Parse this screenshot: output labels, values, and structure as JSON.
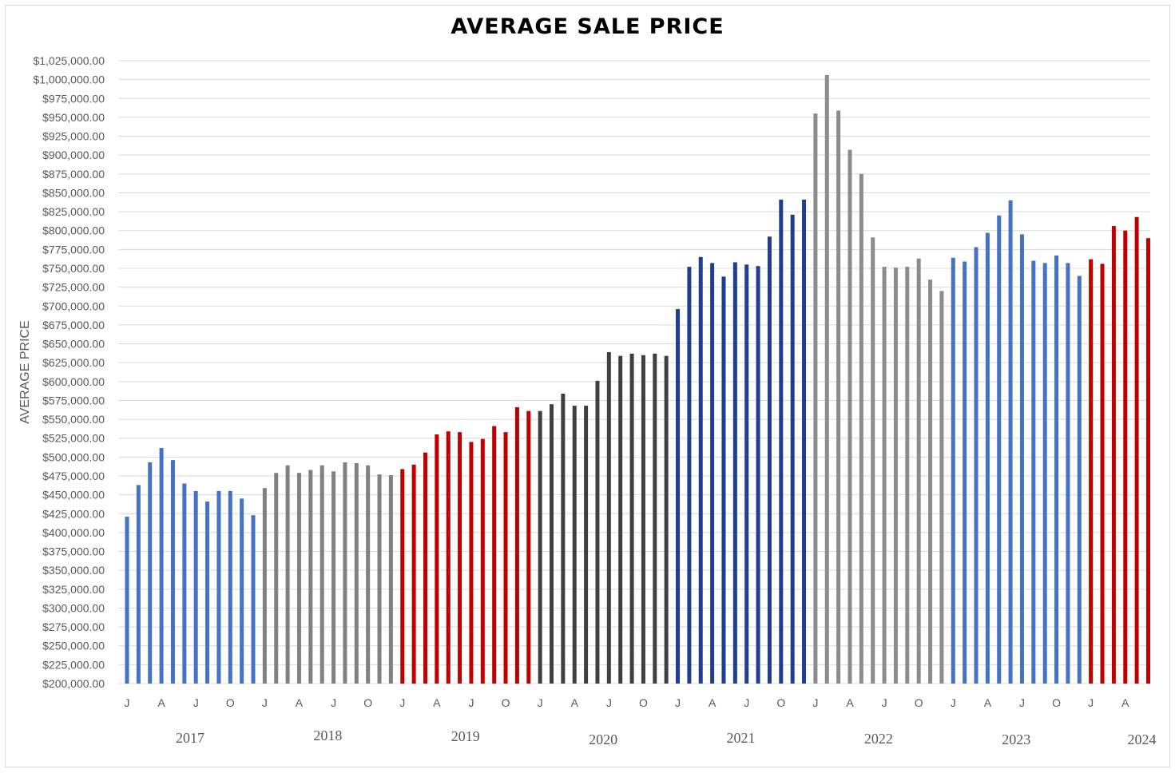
{
  "chart_data": {
    "type": "bar",
    "title": "AVERAGE SALE PRICE",
    "ylabel": "AVERAGE PRICE",
    "xlabel": "",
    "ylim": [
      200000,
      1025000
    ],
    "y_tick_step": 25000,
    "y_tick_format": "$#,##0.00",
    "grid": true,
    "legend": "none",
    "month_tick_labels": [
      "J",
      "A",
      "J",
      "O"
    ],
    "series": [
      {
        "year": "2017",
        "color": "#4472c4",
        "values": [
          421000,
          463000,
          493000,
          512000,
          496000,
          465000,
          455000,
          441000,
          455000,
          455000,
          445000,
          423000
        ]
      },
      {
        "year": "2018",
        "color": "#808080",
        "values": [
          459000,
          479000,
          489000,
          479000,
          483000,
          489000,
          481000,
          493000,
          492000,
          489000,
          477000,
          476000
        ]
      },
      {
        "year": "2019",
        "color": "#c00000",
        "values": [
          484000,
          490000,
          506000,
          530000,
          534000,
          533000,
          520000,
          524000,
          541000,
          533000,
          566000,
          561000
        ]
      },
      {
        "year": "2020",
        "color": "#3f3f3f",
        "values": [
          561000,
          570000,
          584000,
          568000,
          568000,
          601000,
          639000,
          634000,
          637000,
          635000,
          637000,
          634000
        ]
      },
      {
        "year": "2021",
        "color": "#1f3e8f",
        "values": [
          696000,
          752000,
          765000,
          757000,
          739000,
          758000,
          755000,
          753000,
          792000,
          841000,
          821000,
          841000
        ]
      },
      {
        "year": "2022",
        "color": "#8c8c8c",
        "values": [
          955000,
          1006000,
          959000,
          907000,
          875000,
          791000,
          752000,
          751000,
          752000,
          763000,
          735000,
          720000
        ]
      },
      {
        "year": "2023",
        "color": "#4472c4",
        "values": [
          764000,
          759000,
          778000,
          797000,
          820000,
          840000,
          795000,
          760000,
          757000,
          767000,
          757000,
          740000
        ]
      },
      {
        "year": "2024",
        "color": "#c00000",
        "values": [
          762000,
          756000,
          806000,
          800000,
          818000,
          790000
        ]
      }
    ]
  }
}
